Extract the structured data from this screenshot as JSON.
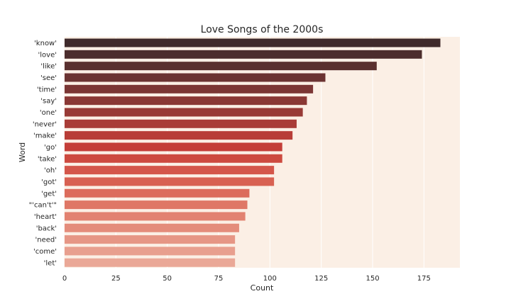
{
  "chart_data": {
    "type": "bar",
    "orientation": "horizontal",
    "title": "Love Songs of the 2000s",
    "xlabel": "Count",
    "ylabel": "Word",
    "categories": [
      "'know'",
      "'love'",
      "'like'",
      "'see'",
      "'time'",
      "'say'",
      "'one'",
      "'never'",
      "'make'",
      "'go'",
      "'take'",
      "'oh'",
      "'got'",
      "'get'",
      "\"'can't'\"",
      "'heart'",
      "'back'",
      "'need'",
      "'come'",
      "'let'"
    ],
    "values": [
      183,
      174,
      152,
      127,
      121,
      118,
      116,
      113,
      111,
      106,
      106,
      102,
      102,
      90,
      89,
      88,
      85,
      83,
      83,
      83
    ],
    "xticks": [
      0,
      25,
      50,
      75,
      100,
      125,
      150,
      175
    ],
    "xlim": [
      0,
      192
    ],
    "grid": true,
    "legend": "none",
    "colors": [
      "#3f2a2b",
      "#4c2d2d",
      "#5a302f",
      "#6b3332",
      "#7b3634",
      "#8a3835",
      "#983a36",
      "#a93c37",
      "#b83d37",
      "#c43e38",
      "#cd4a3f",
      "#d4564a",
      "#d86152",
      "#dc6c5c",
      "#df7766",
      "#e28271",
      "#e48c7b",
      "#e69685",
      "#e89f8e",
      "#eaa897"
    ],
    "plot_background": "#fbefe5"
  }
}
